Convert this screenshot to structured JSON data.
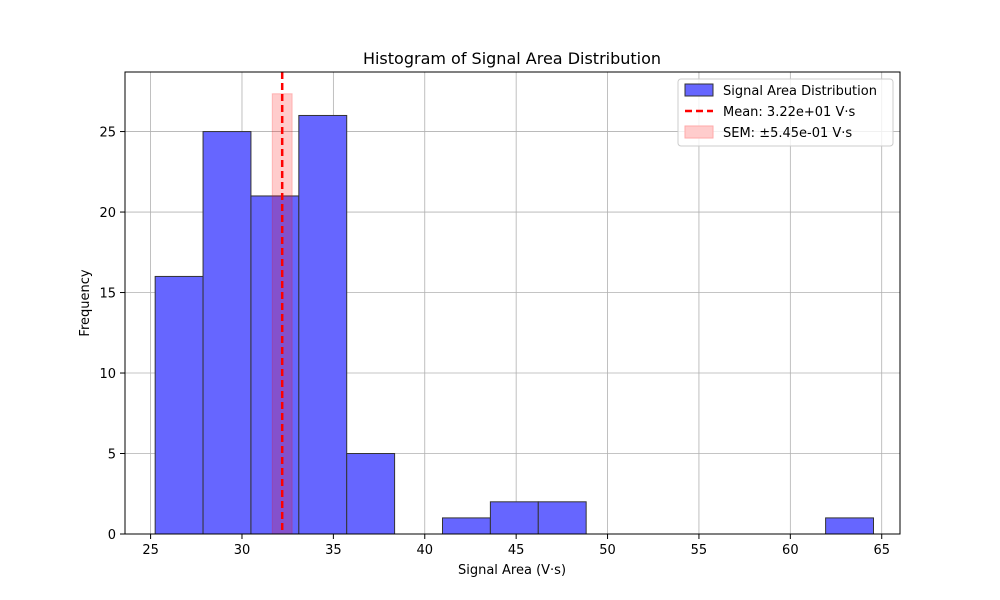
{
  "chart_data": {
    "type": "bar",
    "title": "Histogram of Signal Area Distribution",
    "xlabel": "Signal Area (V·s)",
    "ylabel": "Frequency",
    "xlim": [
      23.6,
      66.0
    ],
    "ylim": [
      0,
      28.7
    ],
    "xticks": [
      25,
      30,
      35,
      40,
      45,
      50,
      55,
      60,
      65
    ],
    "yticks": [
      0,
      5,
      10,
      15,
      20,
      25
    ],
    "grid": true,
    "legend_position": "top-right",
    "bins": [
      {
        "x0": 25.25,
        "x1": 27.87,
        "count": 16
      },
      {
        "x0": 27.87,
        "x1": 30.49,
        "count": 25
      },
      {
        "x0": 30.49,
        "x1": 33.11,
        "count": 21
      },
      {
        "x0": 33.11,
        "x1": 35.73,
        "count": 26
      },
      {
        "x0": 35.73,
        "x1": 38.35,
        "count": 5
      },
      {
        "x0": 38.35,
        "x1": 40.97,
        "count": 0
      },
      {
        "x0": 40.97,
        "x1": 43.59,
        "count": 1
      },
      {
        "x0": 43.59,
        "x1": 46.21,
        "count": 2
      },
      {
        "x0": 46.21,
        "x1": 48.83,
        "count": 2
      },
      {
        "x0": 48.83,
        "x1": 51.45,
        "count": 0
      },
      {
        "x0": 51.45,
        "x1": 54.07,
        "count": 0
      },
      {
        "x0": 54.07,
        "x1": 56.69,
        "count": 0
      },
      {
        "x0": 56.69,
        "x1": 59.31,
        "count": 0
      },
      {
        "x0": 59.31,
        "x1": 61.93,
        "count": 0
      },
      {
        "x0": 61.93,
        "x1": 64.55,
        "count": 1
      }
    ],
    "mean": 32.2,
    "sem": 0.545,
    "sem_band_height": 27.35,
    "series": [
      {
        "name": "Signal Area Distribution",
        "color": "#6666ff",
        "edge": "#333333"
      },
      {
        "name": "Mean: 3.22e+01 V·s",
        "color": "#ff0000"
      },
      {
        "name": "SEM: ±5.45e-01 V·s",
        "color": "#ffcccc"
      }
    ]
  }
}
